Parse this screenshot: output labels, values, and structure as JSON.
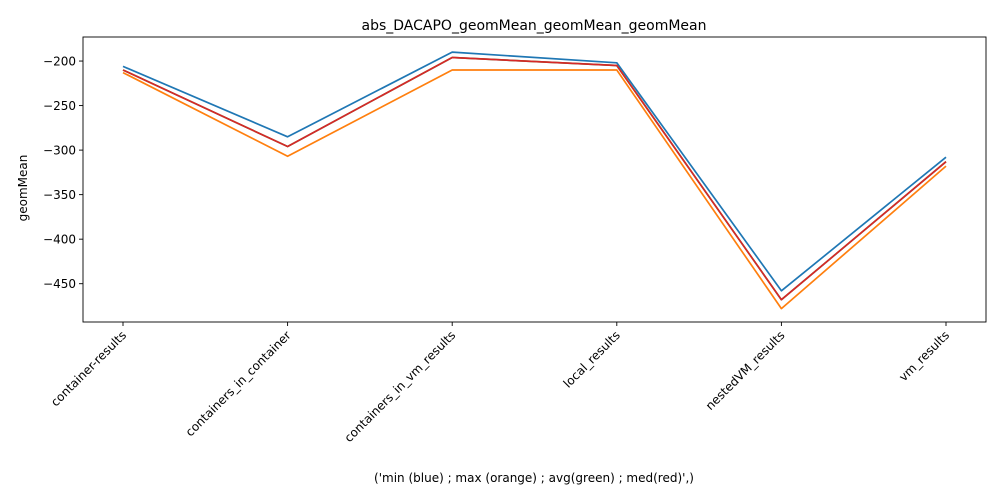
{
  "chart_data": {
    "type": "line",
    "title": "abs_DACAPO_geomMean_geomMean_geomMean",
    "xlabel": "('min (blue) ; max (orange) ; avg(green) ; med(red)',)",
    "ylabel": "geomMean",
    "categories": [
      "container-results",
      "containers_in_container",
      "containers_in_vm_results",
      "local_results",
      "nestedVM_results",
      "vm_results"
    ],
    "ylim": [
      -493,
      -173
    ],
    "yticks": [
      -200,
      -250,
      -300,
      -350,
      -400,
      -450
    ],
    "ytick_labels": [
      "−200",
      "−250",
      "−300",
      "−350",
      "−400",
      "−450"
    ],
    "grid": false,
    "legend": "none",
    "series": [
      {
        "color": "#1f77b4",
        "values": [
          -206,
          -285,
          -190,
          -202,
          -458,
          -308
        ]
      },
      {
        "color": "#ff7f0e",
        "values": [
          -213,
          -307,
          -210,
          -210,
          -478,
          -318
        ]
      },
      {
        "color": "#2ca02c",
        "values": [
          -210,
          -296,
          -196,
          -205,
          -468,
          -313
        ]
      },
      {
        "color": "#d62728",
        "values": [
          -210,
          -296,
          -196,
          -205,
          -468,
          -313
        ]
      }
    ]
  }
}
